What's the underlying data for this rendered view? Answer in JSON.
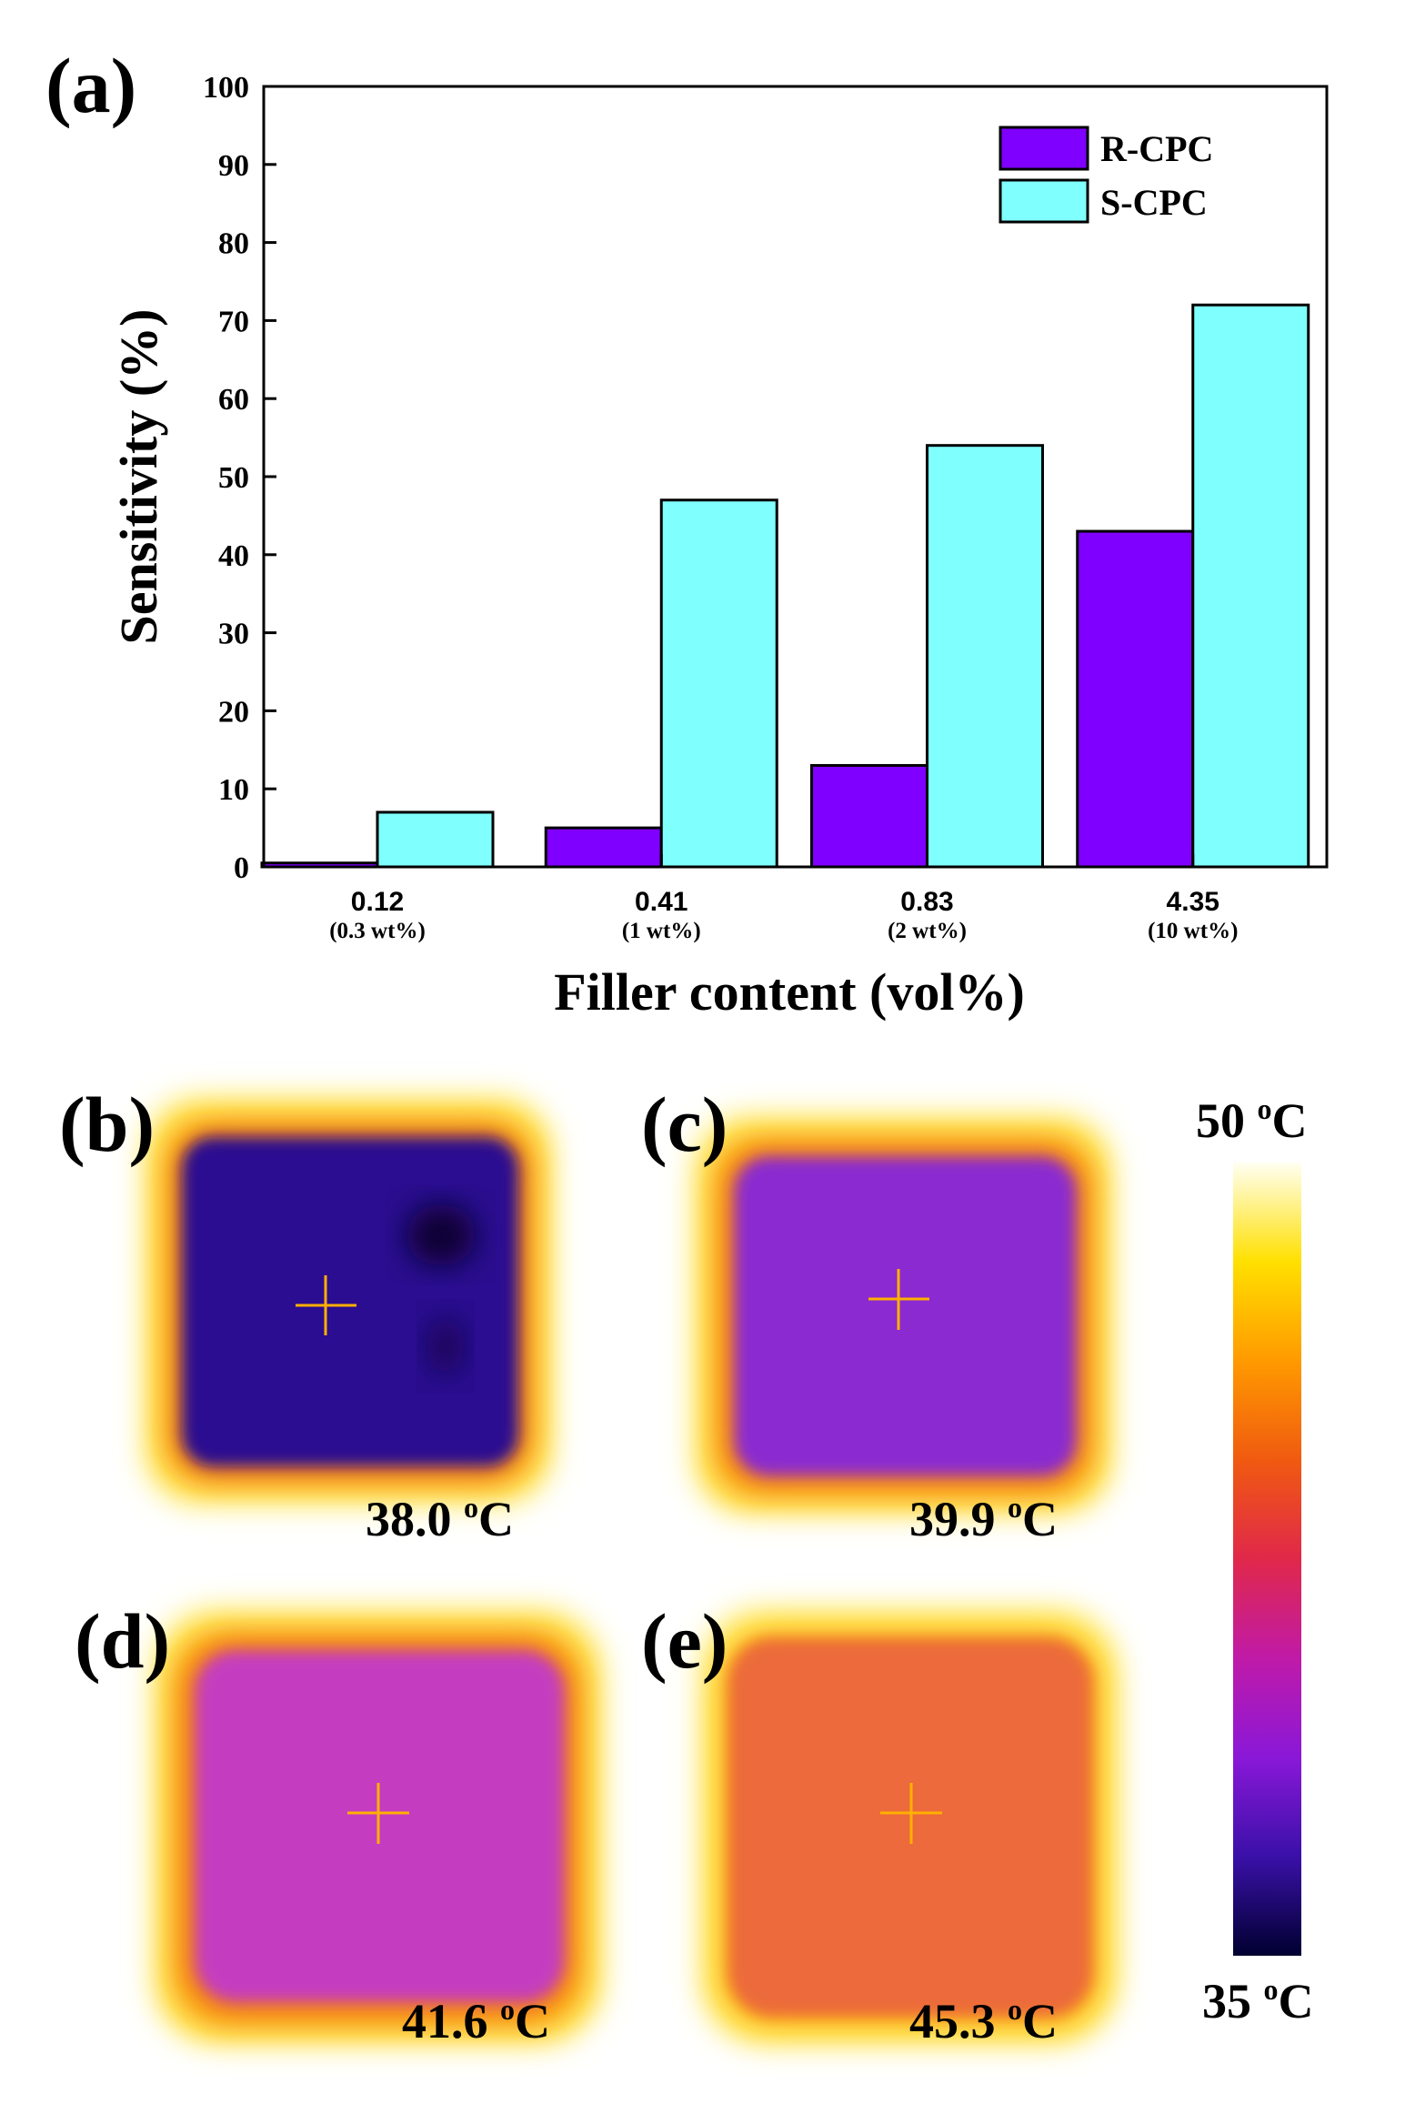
{
  "chart_data": {
    "type": "bar",
    "panel_label": "(a)",
    "categories": [
      "0.12",
      "0.41",
      "0.83",
      "4.35"
    ],
    "category_sublabels": [
      "(0.3 wt%)",
      "(1 wt%)",
      "(2 wt%)",
      "(10 wt%)"
    ],
    "series": [
      {
        "name": "R-CPC",
        "color": "#7f00ff",
        "values": [
          0.5,
          5,
          13,
          43
        ]
      },
      {
        "name": "S-CPC",
        "color": "#80ffff",
        "values": [
          7,
          47,
          54,
          72
        ]
      }
    ],
    "xlabel": "Filler content (vol%)",
    "ylabel": "Sensitivity (%)",
    "ylim": [
      0,
      100
    ],
    "yticks": [
      "0",
      "10",
      "20",
      "30",
      "40",
      "50",
      "60",
      "70",
      "80",
      "90",
      "100"
    ],
    "legend_position": "top-right"
  },
  "thermal_panels": [
    {
      "label": "(b)",
      "temperature": "38.0",
      "unit": "°C",
      "unit_sup": "o",
      "unit_letter": "C"
    },
    {
      "label": "(c)",
      "temperature": "39.9",
      "unit": "°C",
      "unit_sup": "o",
      "unit_letter": "C"
    },
    {
      "label": "(d)",
      "temperature": "41.6",
      "unit": "°C",
      "unit_sup": "o",
      "unit_letter": "C"
    },
    {
      "label": "(e)",
      "temperature": "45.3",
      "unit": "°C",
      "unit_sup": "o",
      "unit_letter": "C"
    }
  ],
  "colorbar": {
    "max_value": "50",
    "min_value": "35",
    "unit_sup": "o",
    "unit_letter": "C",
    "stops": [
      "#fffff2",
      "#ffe000",
      "#ff9a00",
      "#f05a10",
      "#e0284a",
      "#c01aa8",
      "#8a18d8",
      "#3a10a8",
      "#000030"
    ]
  },
  "thermal_colors": {
    "hot_edge": "#ffee70",
    "mid_edge": "#ffc010",
    "orange": "#f07020",
    "crosshair": "#ffb000",
    "b_center": "#2a1090",
    "b_dark": "#0a0030",
    "c_center": "#8a2ad0",
    "d_center": "#c43cc0",
    "e_center": "#ec6a3a"
  }
}
